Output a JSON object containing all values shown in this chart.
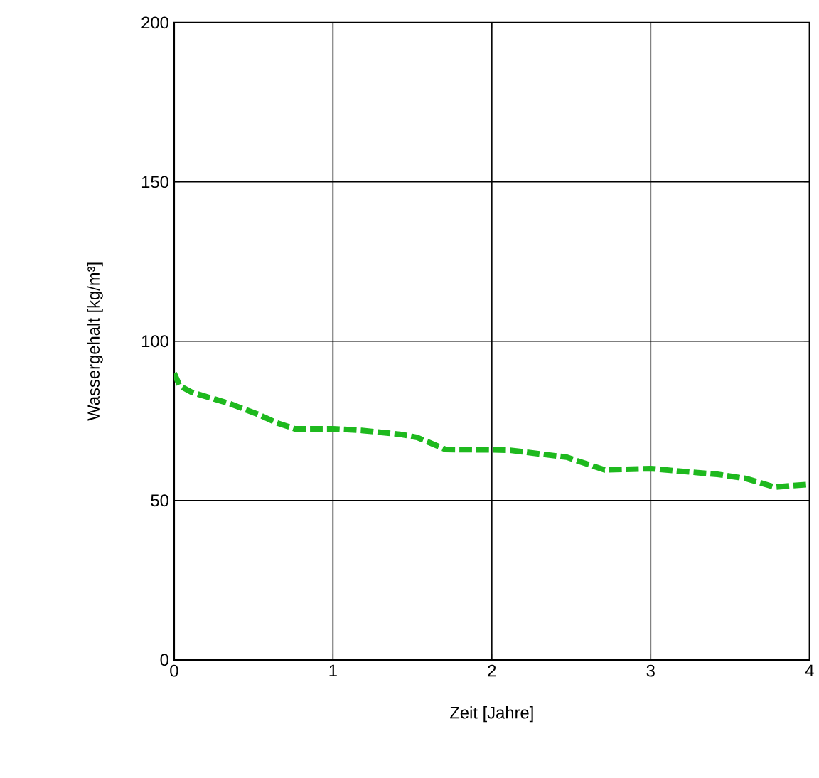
{
  "chart_data": {
    "type": "line",
    "xlabel": "Zeit [Jahre]",
    "ylabel": "Wassergehalt [kg/m³]",
    "xlim": [
      0,
      4
    ],
    "ylim": [
      0,
      200
    ],
    "xticks": [
      0,
      1,
      2,
      3,
      4
    ],
    "yticks": [
      0,
      50,
      100,
      150,
      200
    ],
    "grid": true,
    "line_style": "dashed",
    "marker": "none",
    "series": [
      {
        "color": "#1eb91e",
        "x": [
          0,
          0.035,
          0.11,
          0.35,
          0.53,
          0.64,
          0.76,
          1.0,
          1.18,
          1.42,
          1.53,
          1.71,
          1.98,
          2.11,
          2.47,
          2.71,
          3.0,
          3.42,
          3.6,
          3.78,
          3.98
        ],
        "values": [
          90,
          86,
          84,
          80.4,
          77,
          74.5,
          72.5,
          72.5,
          72,
          70.8,
          69.8,
          66,
          65.9,
          65.8,
          63.6,
          59.6,
          60,
          58.2,
          56.9,
          54.2,
          55
        ]
      }
    ]
  }
}
